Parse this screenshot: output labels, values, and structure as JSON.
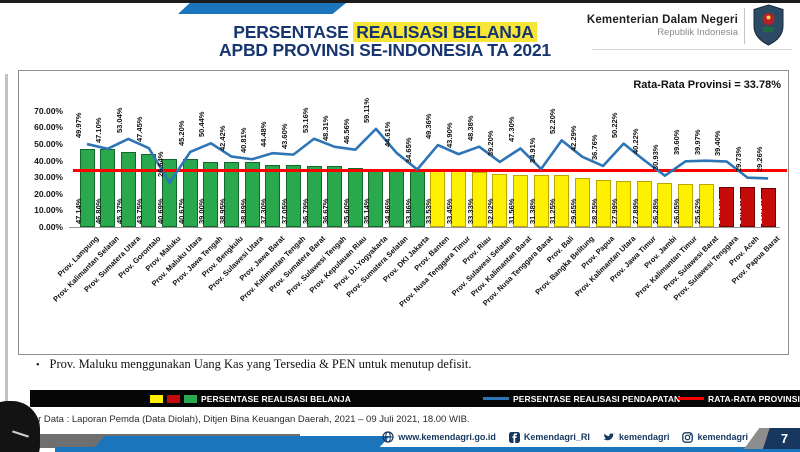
{
  "header": {
    "ministry_name": "Kementerian Dalam Negeri",
    "republic_name": "Republik Indonesia",
    "title_line1_normal": "PERSENTASE",
    "title_line1_highlight": "REALISASI BELANJA",
    "title_line2": "APBD PROVINSI SE-INDONESIA TA 2021"
  },
  "chart": {
    "average_label": "Rata-Rata Provinsi = 33.78%",
    "y_tick_labels": [
      "70.00%",
      "60.00%",
      "50.00%",
      "40.00%",
      "30.00%",
      "20.00%",
      "10.00%",
      "0.00%"
    ]
  },
  "chart_data": {
    "type": "bar",
    "title": "PERSENTASE REALISASI BELANJA APBD PROVINSI SE-INDONESIA TA 2021",
    "ylim": [
      0,
      70
    ],
    "grid": false,
    "legend_position": "bottom",
    "categories": [
      "Prov. Lampung",
      "Prov. Kalimantan Selatan",
      "Prov. Sumatera Utara",
      "Prov. Gorontalo",
      "Prov. Maluku",
      "Prov. Maluku Utara",
      "Prov. Jawa Tengah",
      "Prov. Bengkulu",
      "Prov. Sulawesi Utara",
      "Prov. Jawa Barat",
      "Prov. Kalimantan Tengah",
      "Prov. Sumatera Barat",
      "Prov. Sulawesi Tengah",
      "Prov. Kepulauan Riau",
      "Prov. D.I.Yogyakarta",
      "Prov. Sumatera Selatan",
      "Prov. DKI Jakarta",
      "Prov. Banten",
      "Prov. Nusa Tenggara Timur",
      "Prov. Riau",
      "Prov. Sulawesi Selatan",
      "Prov. Kalimantan Barat",
      "Prov. Nusa Tenggara Barat",
      "Prov. Bali",
      "Prov. Bangka Belitung",
      "Prov. Papua",
      "Prov. Kalimantan Utara",
      "Prov. Jawa Timur",
      "Prov. Jambi",
      "Prov. Kalimantan Timur",
      "Prov. Sulawesi Barat",
      "Prov. Sulawesi Tenggara",
      "Prov. Aceh",
      "Prov. Papua Barat"
    ],
    "series": [
      {
        "name": "PERSENTASE REALISASI BELANJA",
        "type": "bar",
        "values": [
          47.14,
          46.8,
          45.37,
          43.75,
          40.69,
          40.67,
          39.0,
          38.95,
          38.89,
          37.3,
          37.05,
          36.79,
          36.67,
          35.6,
          35.14,
          34.86,
          33.86,
          33.53,
          33.45,
          33.33,
          32.02,
          31.56,
          31.38,
          31.25,
          29.65,
          28.25,
          27.99,
          27.89,
          26.28,
          26.05,
          25.62,
          24.33,
          24.06,
          23.62
        ]
      },
      {
        "name": "PERSENTASE REALISASI PENDAPATAN",
        "type": "line",
        "values": [
          49.97,
          47.1,
          53.04,
          47.45,
          26.64,
          45.2,
          50.44,
          42.42,
          40.81,
          44.48,
          43.6,
          53.16,
          48.31,
          46.56,
          59.11,
          44.61,
          34.65,
          49.36,
          43.9,
          48.38,
          39.2,
          47.3,
          34.91,
          52.2,
          42.29,
          36.76,
          50.22,
          40.22,
          30.93,
          39.6,
          39.97,
          39.4,
          29.73,
          29.26
        ]
      },
      {
        "name": "RATA-RATA PROVINSI",
        "type": "reference-line",
        "value": 33.78
      }
    ],
    "bar_colors": [
      "green",
      "green",
      "green",
      "green",
      "green",
      "green",
      "green",
      "green",
      "green",
      "green",
      "green",
      "green",
      "green",
      "green",
      "green",
      "green",
      "green",
      "yellow",
      "yellow",
      "yellow",
      "yellow",
      "yellow",
      "yellow",
      "yellow",
      "yellow",
      "yellow",
      "yellow",
      "yellow",
      "yellow",
      "yellow",
      "yellow",
      "red",
      "red",
      "red"
    ]
  },
  "footnote": {
    "bullet": "•",
    "text": "Prov. Maluku menggunakan Uang Kas yang Tersedia & PEN untuk menutup defisit."
  },
  "legend": {
    "belanja": "PERSENTASE REALISASI BELANJA",
    "pendapatan": "PERSENTASE REALISASI PENDAPATAN",
    "rata": "RATA-RATA PROVINSI"
  },
  "footer": {
    "sumber": "Sumber Data : Laporan Pemda (Data Diolah), Ditjen Bina Keuangan Daerah, 2021 – 09 Juli 2021, 18.00 WIB.",
    "socials": [
      {
        "icon": "globe-icon",
        "label": "www.kemendagri.go.id"
      },
      {
        "icon": "facebook-icon",
        "label": "Kemendagri_RI"
      },
      {
        "icon": "twitter-icon",
        "label": "kemendagri"
      },
      {
        "icon": "instagram-icon",
        "label": "kemendagri"
      }
    ],
    "page_number": "7"
  },
  "colors": {
    "green": "#2aa84d",
    "green_border": "#13672a",
    "yellow": "#fdf000",
    "yellow_border": "#bba600",
    "red": "#c60b0b",
    "red_border": "#6f0000",
    "line_blue": "#2e75b6",
    "avg_red": "#fe0000",
    "title_navy": "#17356e",
    "highlight_yellow": "#f7e636",
    "footer_blue": "#1b75bc",
    "navy_text": "#17375e"
  }
}
